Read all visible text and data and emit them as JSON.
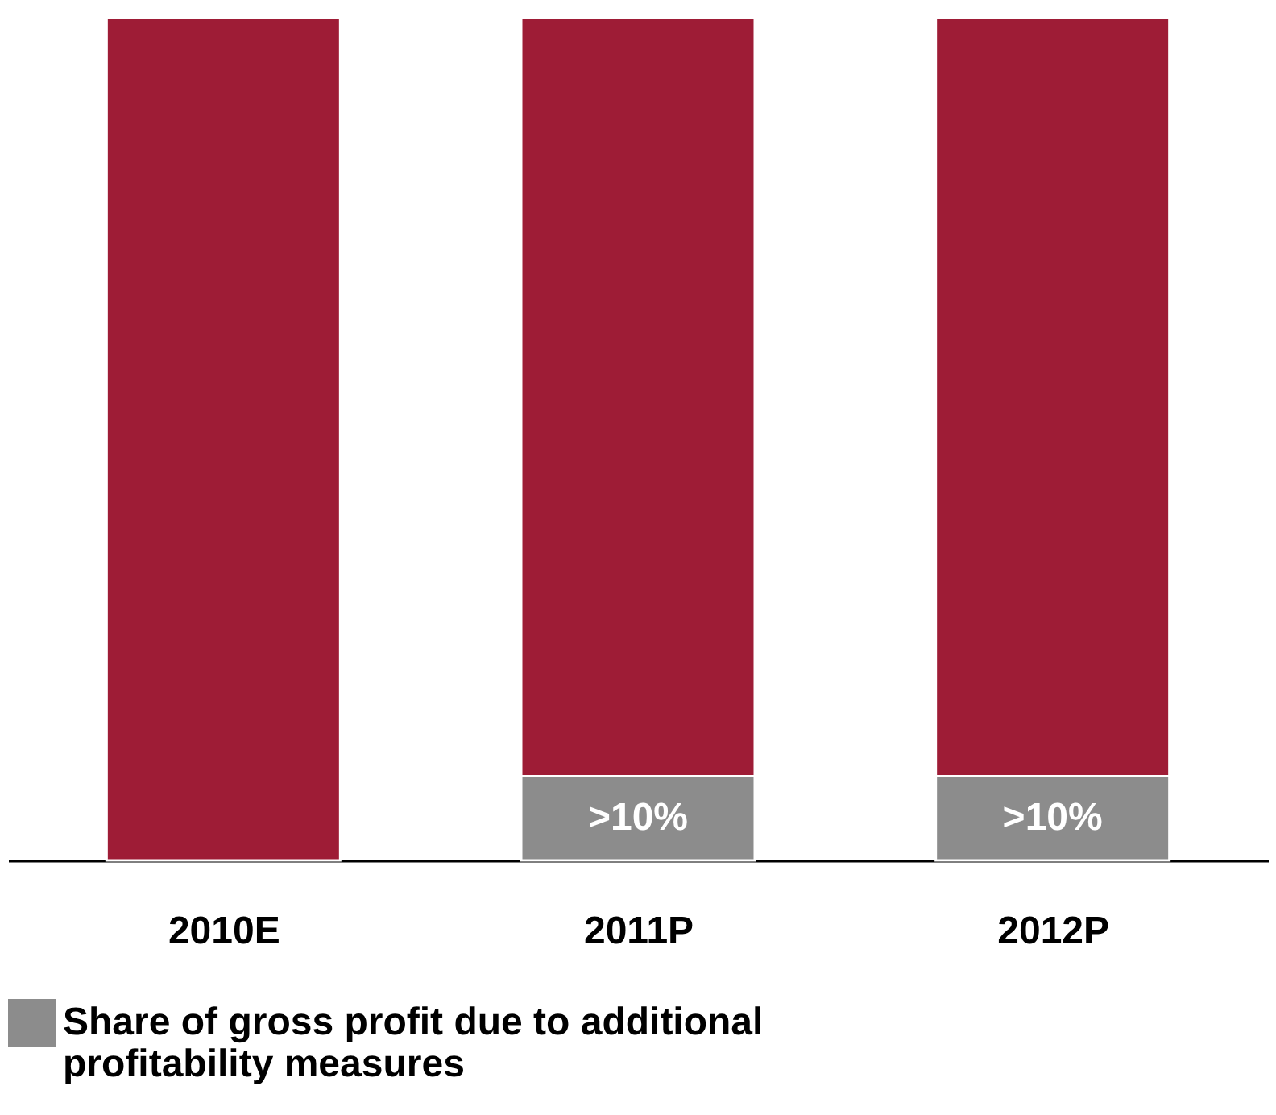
{
  "chart_data": {
    "type": "bar",
    "stacked": true,
    "legend": "bottom left",
    "tick_labels": "x",
    "ylim": [
      0,
      100
    ],
    "categories": [
      "2010E",
      "2011P",
      "2012P"
    ],
    "series": [
      {
        "name": "Share of gross profit due to additional profitability measures",
        "color": "#8c8c8c",
        "values": [
          null,
          10,
          10
        ],
        "value_labels": [
          null,
          ">10%",
          ">10%"
        ]
      },
      {
        "color": "#9e1c36",
        "values": [
          100,
          90,
          90
        ]
      }
    ]
  }
}
